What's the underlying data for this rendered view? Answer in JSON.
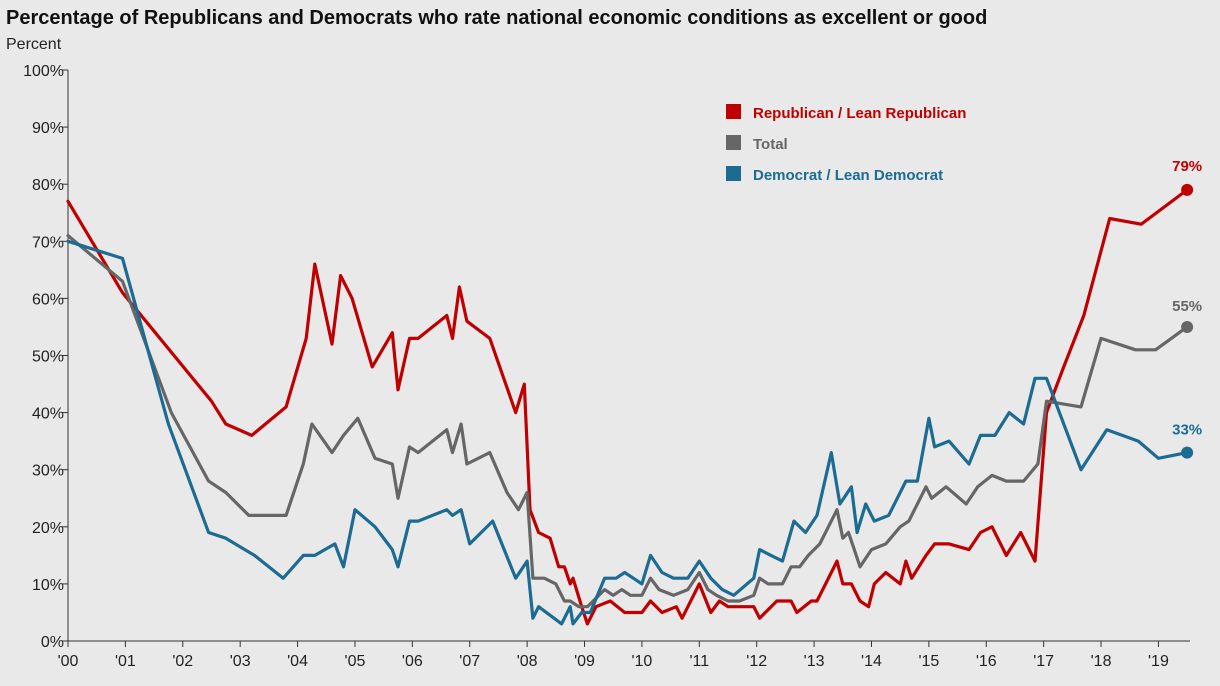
{
  "chart_data": {
    "type": "line",
    "title": "Percentage of Republicans and Democrats who rate national economic conditions as excellent or good",
    "ylabel": "Percent",
    "ylim": [
      0,
      100
    ],
    "xlim": [
      2000,
      2019.55
    ],
    "grid": false,
    "legend_position": "top-right",
    "yticks": [
      {
        "value": 0,
        "label": "0%"
      },
      {
        "value": 10,
        "label": "10%"
      },
      {
        "value": 20,
        "label": "20%"
      },
      {
        "value": 30,
        "label": "30%"
      },
      {
        "value": 40,
        "label": "40%"
      },
      {
        "value": 50,
        "label": "50%"
      },
      {
        "value": 60,
        "label": "60%"
      },
      {
        "value": 70,
        "label": "70%"
      },
      {
        "value": 80,
        "label": "80%"
      },
      {
        "value": 90,
        "label": "90%"
      },
      {
        "value": 100,
        "label": "100%"
      }
    ],
    "xticks": [
      {
        "value": 2000,
        "label": "'00"
      },
      {
        "value": 2001,
        "label": "'01"
      },
      {
        "value": 2002,
        "label": "'02"
      },
      {
        "value": 2003,
        "label": "'03"
      },
      {
        "value": 2004,
        "label": "'04"
      },
      {
        "value": 2005,
        "label": "'05"
      },
      {
        "value": 2006,
        "label": "'06"
      },
      {
        "value": 2007,
        "label": "'07"
      },
      {
        "value": 2008,
        "label": "'08"
      },
      {
        "value": 2009,
        "label": "'09"
      },
      {
        "value": 2010,
        "label": "'10"
      },
      {
        "value": 2011,
        "label": "'11"
      },
      {
        "value": 2012,
        "label": "'12"
      },
      {
        "value": 2013,
        "label": "'13"
      },
      {
        "value": 2014,
        "label": "'14"
      },
      {
        "value": 2015,
        "label": "'15"
      },
      {
        "value": 2016,
        "label": "'16"
      },
      {
        "value": 2017,
        "label": "'17"
      },
      {
        "value": 2018,
        "label": "'18"
      },
      {
        "value": 2019,
        "label": "'19"
      }
    ],
    "series": [
      {
        "name": "Republican / Lean Republican",
        "color": "#c00000",
        "end_label": "79%",
        "points": [
          [
            2000.0,
            77
          ],
          [
            2000.95,
            61
          ],
          [
            2002.5,
            42
          ],
          [
            2002.75,
            38
          ],
          [
            2003.2,
            36
          ],
          [
            2003.8,
            41
          ],
          [
            2004.15,
            53
          ],
          [
            2004.3,
            66
          ],
          [
            2004.6,
            52
          ],
          [
            2004.75,
            64
          ],
          [
            2004.95,
            60
          ],
          [
            2005.3,
            48
          ],
          [
            2005.65,
            54
          ],
          [
            2005.75,
            44
          ],
          [
            2005.95,
            53
          ],
          [
            2006.1,
            53
          ],
          [
            2006.6,
            57
          ],
          [
            2006.7,
            53
          ],
          [
            2006.82,
            62
          ],
          [
            2006.95,
            56
          ],
          [
            2007.35,
            53
          ],
          [
            2007.8,
            40
          ],
          [
            2007.95,
            45
          ],
          [
            2008.05,
            23
          ],
          [
            2008.2,
            19
          ],
          [
            2008.4,
            18
          ],
          [
            2008.55,
            13
          ],
          [
            2008.65,
            13
          ],
          [
            2008.75,
            10
          ],
          [
            2008.8,
            11
          ],
          [
            2008.95,
            6
          ],
          [
            2009.05,
            3
          ],
          [
            2009.2,
            6
          ],
          [
            2009.45,
            7
          ],
          [
            2009.7,
            5
          ],
          [
            2010.0,
            5
          ],
          [
            2010.15,
            7
          ],
          [
            2010.35,
            5
          ],
          [
            2010.6,
            6
          ],
          [
            2010.7,
            4
          ],
          [
            2011.0,
            10
          ],
          [
            2011.2,
            5
          ],
          [
            2011.35,
            7
          ],
          [
            2011.5,
            6
          ],
          [
            2011.95,
            6
          ],
          [
            2012.05,
            4
          ],
          [
            2012.35,
            7
          ],
          [
            2012.6,
            7
          ],
          [
            2012.7,
            5
          ],
          [
            2012.95,
            7
          ],
          [
            2013.05,
            7
          ],
          [
            2013.2,
            10
          ],
          [
            2013.4,
            14
          ],
          [
            2013.5,
            10
          ],
          [
            2013.65,
            10
          ],
          [
            2013.8,
            7
          ],
          [
            2013.95,
            6
          ],
          [
            2014.05,
            10
          ],
          [
            2014.25,
            12
          ],
          [
            2014.5,
            10
          ],
          [
            2014.6,
            14
          ],
          [
            2014.7,
            11
          ],
          [
            2014.95,
            15
          ],
          [
            2015.1,
            17
          ],
          [
            2015.35,
            17
          ],
          [
            2015.7,
            16
          ],
          [
            2015.9,
            19
          ],
          [
            2016.1,
            20
          ],
          [
            2016.35,
            15
          ],
          [
            2016.6,
            19
          ],
          [
            2016.85,
            14
          ],
          [
            2017.05,
            40
          ],
          [
            2017.35,
            48
          ],
          [
            2017.7,
            57
          ],
          [
            2018.15,
            74
          ],
          [
            2018.7,
            73
          ],
          [
            2019.5,
            79
          ]
        ]
      },
      {
        "name": "Total",
        "color": "#666666",
        "end_label": "55%",
        "points": [
          [
            2000.0,
            71
          ],
          [
            2000.95,
            63
          ],
          [
            2001.8,
            40
          ],
          [
            2002.45,
            28
          ],
          [
            2002.75,
            26
          ],
          [
            2003.15,
            22
          ],
          [
            2003.8,
            22
          ],
          [
            2004.1,
            31
          ],
          [
            2004.25,
            38
          ],
          [
            2004.6,
            33
          ],
          [
            2004.8,
            36
          ],
          [
            2005.05,
            39
          ],
          [
            2005.35,
            32
          ],
          [
            2005.65,
            31
          ],
          [
            2005.75,
            25
          ],
          [
            2005.95,
            34
          ],
          [
            2006.1,
            33
          ],
          [
            2006.6,
            37
          ],
          [
            2006.7,
            33
          ],
          [
            2006.85,
            38
          ],
          [
            2006.95,
            31
          ],
          [
            2007.35,
            33
          ],
          [
            2007.65,
            26
          ],
          [
            2007.85,
            23
          ],
          [
            2008.0,
            26
          ],
          [
            2008.1,
            11
          ],
          [
            2008.3,
            11
          ],
          [
            2008.5,
            10
          ],
          [
            2008.65,
            7
          ],
          [
            2008.75,
            7
          ],
          [
            2008.9,
            6
          ],
          [
            2009.05,
            6
          ],
          [
            2009.35,
            9
          ],
          [
            2009.5,
            8
          ],
          [
            2009.65,
            9
          ],
          [
            2009.8,
            8
          ],
          [
            2010.0,
            8
          ],
          [
            2010.15,
            11
          ],
          [
            2010.3,
            9
          ],
          [
            2010.55,
            8
          ],
          [
            2010.8,
            9
          ],
          [
            2011.0,
            12
          ],
          [
            2011.15,
            9
          ],
          [
            2011.3,
            8
          ],
          [
            2011.5,
            7
          ],
          [
            2011.7,
            7
          ],
          [
            2011.95,
            8
          ],
          [
            2012.05,
            11
          ],
          [
            2012.2,
            10
          ],
          [
            2012.45,
            10
          ],
          [
            2012.6,
            13
          ],
          [
            2012.75,
            13
          ],
          [
            2012.9,
            15
          ],
          [
            2013.1,
            17
          ],
          [
            2013.4,
            23
          ],
          [
            2013.5,
            18
          ],
          [
            2013.6,
            19
          ],
          [
            2013.7,
            16
          ],
          [
            2013.8,
            13
          ],
          [
            2014.0,
            16
          ],
          [
            2014.25,
            17
          ],
          [
            2014.5,
            20
          ],
          [
            2014.65,
            21
          ],
          [
            2014.95,
            27
          ],
          [
            2015.05,
            25
          ],
          [
            2015.3,
            27
          ],
          [
            2015.65,
            24
          ],
          [
            2015.85,
            27
          ],
          [
            2016.1,
            29
          ],
          [
            2016.35,
            28
          ],
          [
            2016.65,
            28
          ],
          [
            2016.9,
            31
          ],
          [
            2017.05,
            42
          ],
          [
            2017.65,
            41
          ],
          [
            2018.0,
            53
          ],
          [
            2018.6,
            51
          ],
          [
            2018.95,
            51
          ],
          [
            2019.5,
            55
          ]
        ]
      },
      {
        "name": "Democrat / Lean Democrat",
        "color": "#1b6b93",
        "end_label": "33%",
        "points": [
          [
            2000.0,
            70
          ],
          [
            2000.95,
            67
          ],
          [
            2001.75,
            38
          ],
          [
            2002.45,
            19
          ],
          [
            2002.75,
            18
          ],
          [
            2003.25,
            15
          ],
          [
            2003.75,
            11
          ],
          [
            2004.1,
            15
          ],
          [
            2004.3,
            15
          ],
          [
            2004.65,
            17
          ],
          [
            2004.8,
            13
          ],
          [
            2005.0,
            23
          ],
          [
            2005.35,
            20
          ],
          [
            2005.65,
            16
          ],
          [
            2005.75,
            13
          ],
          [
            2005.95,
            21
          ],
          [
            2006.1,
            21
          ],
          [
            2006.6,
            23
          ],
          [
            2006.7,
            22
          ],
          [
            2006.85,
            23
          ],
          [
            2007.0,
            17
          ],
          [
            2007.4,
            21
          ],
          [
            2007.8,
            11
          ],
          [
            2008.0,
            14
          ],
          [
            2008.1,
            4
          ],
          [
            2008.2,
            6
          ],
          [
            2008.6,
            3
          ],
          [
            2008.75,
            6
          ],
          [
            2008.8,
            3
          ],
          [
            2008.95,
            5
          ],
          [
            2009.1,
            5
          ],
          [
            2009.35,
            11
          ],
          [
            2009.55,
            11
          ],
          [
            2009.7,
            12
          ],
          [
            2009.85,
            11
          ],
          [
            2010.0,
            10
          ],
          [
            2010.15,
            15
          ],
          [
            2010.35,
            12
          ],
          [
            2010.55,
            11
          ],
          [
            2010.8,
            11
          ],
          [
            2011.0,
            14
          ],
          [
            2011.2,
            11
          ],
          [
            2011.4,
            9
          ],
          [
            2011.6,
            8
          ],
          [
            2011.95,
            11
          ],
          [
            2012.05,
            16
          ],
          [
            2012.25,
            15
          ],
          [
            2012.45,
            14
          ],
          [
            2012.65,
            21
          ],
          [
            2012.85,
            19
          ],
          [
            2013.05,
            22
          ],
          [
            2013.3,
            33
          ],
          [
            2013.45,
            24
          ],
          [
            2013.65,
            27
          ],
          [
            2013.75,
            19
          ],
          [
            2013.9,
            24
          ],
          [
            2014.05,
            21
          ],
          [
            2014.3,
            22
          ],
          [
            2014.6,
            28
          ],
          [
            2014.8,
            28
          ],
          [
            2015.0,
            39
          ],
          [
            2015.1,
            34
          ],
          [
            2015.35,
            35
          ],
          [
            2015.7,
            31
          ],
          [
            2015.9,
            36
          ],
          [
            2016.15,
            36
          ],
          [
            2016.4,
            40
          ],
          [
            2016.65,
            38
          ],
          [
            2016.85,
            46
          ],
          [
            2017.05,
            46
          ],
          [
            2017.65,
            30
          ],
          [
            2018.1,
            37
          ],
          [
            2018.65,
            35
          ],
          [
            2019.0,
            32
          ],
          [
            2019.5,
            33
          ]
        ]
      }
    ]
  }
}
